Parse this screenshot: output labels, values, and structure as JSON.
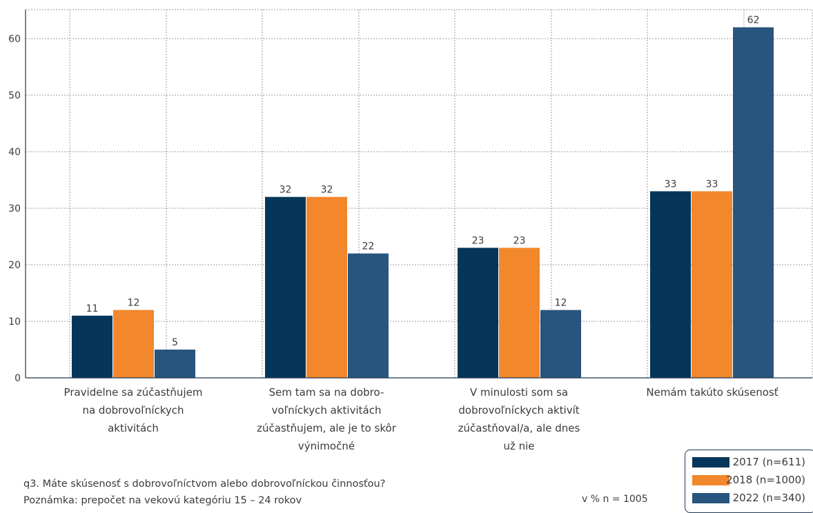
{
  "chart_data": {
    "type": "bar",
    "categories": [
      [
        "Pravidelne sa zúčastňujem",
        "na dobrovoľníckych",
        "aktivitách"
      ],
      [
        "Sem tam sa na dobro-",
        "voľníckych aktivitách",
        "zúčastňujem, ale je to skôr",
        "výnimočné"
      ],
      [
        "V minulosti som sa",
        "dobrovoľníckych aktivít",
        "zúčastňoval/a, ale dnes",
        "už nie"
      ],
      [
        "Nemám takúto skúsenosť"
      ]
    ],
    "series": [
      {
        "name": "2017 (n=611)",
        "color": "#05365a",
        "values": [
          11,
          32,
          23,
          33
        ]
      },
      {
        "name": "2018 (n=1000)",
        "color": "#f2872b",
        "values": [
          12,
          32,
          23,
          33
        ]
      },
      {
        "name": "2022 (n=340)",
        "color": "#27557d",
        "values": [
          5,
          22,
          12,
          62
        ]
      }
    ],
    "yticks": [
      0,
      10,
      20,
      30,
      40,
      50,
      60
    ],
    "ylim": [
      0,
      65
    ],
    "grid": true,
    "legend_position": "bottom-right"
  },
  "footer": {
    "question": "q3. Máte skúsenosť s dobrovoľníctvom alebo dobrovoľníckou činnosťou?",
    "note": "Poznámka: prepočet na vekovú kategóriu 15 – 24 rokov",
    "basis": "v % n = 1005"
  },
  "legend": [
    {
      "label": "2017 (n=611)",
      "color": "#05365a"
    },
    {
      "label": "2018 (n=1000)",
      "color": "#f2872b"
    },
    {
      "label": "2022 (n=340)",
      "color": "#27557d"
    }
  ]
}
